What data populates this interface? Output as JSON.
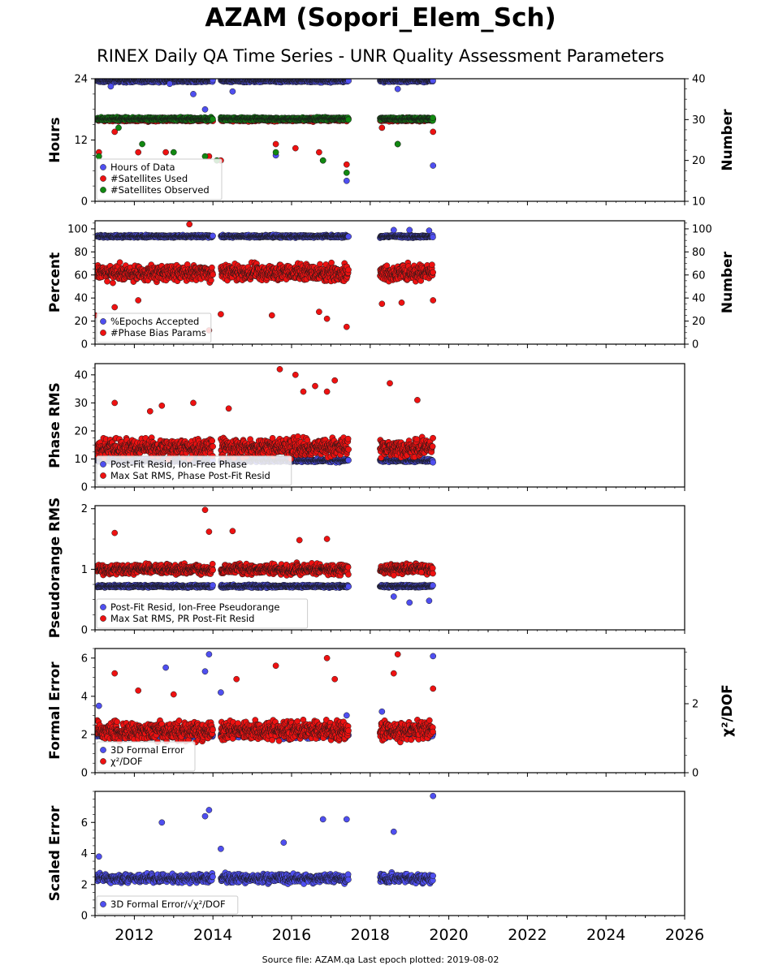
{
  "page": {
    "title": "AZAM (Sopori_Elem_Sch)",
    "subtitle": "RINEX Daily QA Time Series - UNR Quality Assessment Parameters",
    "footer": "Source file: AZAM.qa Last epoch plotted: 2019-08-02"
  },
  "colors": {
    "blue": "#4f4ff0",
    "red": "#ee1111",
    "green": "#118811"
  },
  "chart_data": [
    {
      "type": "scatter",
      "ylabel": "Hours",
      "y2label": "Number",
      "ylim": [
        0,
        24
      ],
      "yticks": [
        0,
        12,
        24
      ],
      "y2lim": [
        10,
        40
      ],
      "y2ticks": [
        10,
        20,
        30,
        40
      ],
      "xlim": [
        2011.0,
        2026.0
      ],
      "xticks": [
        2012,
        2014,
        2016,
        2018,
        2020,
        2022,
        2024,
        2026
      ],
      "legend": "lower-left",
      "series": [
        {
          "name": "Hours of Data",
          "color": "blue",
          "axis": "left",
          "base": 23.6,
          "spread": 0.4,
          "spikes": [
            [
              2011.4,
              22.5
            ],
            [
              2012.9,
              23.0
            ],
            [
              2013.5,
              21.0
            ],
            [
              2013.8,
              18.0
            ],
            [
              2014.5,
              21.5
            ],
            [
              2015.6,
              9.0
            ],
            [
              2016.8,
              8.0
            ],
            [
              2017.4,
              4.0
            ],
            [
              2018.7,
              22.0
            ],
            [
              2019.6,
              7.0
            ]
          ]
        },
        {
          "name": "#Satellites Used",
          "color": "red",
          "axis": "right",
          "base": 30.0,
          "spread": 0.6,
          "spikes": [
            [
              2011.1,
              22
            ],
            [
              2011.5,
              27
            ],
            [
              2012.1,
              22
            ],
            [
              2012.8,
              22
            ],
            [
              2013.9,
              21
            ],
            [
              2014.2,
              20
            ],
            [
              2015.6,
              24
            ],
            [
              2016.1,
              23
            ],
            [
              2016.7,
              22
            ],
            [
              2017.4,
              19
            ],
            [
              2018.3,
              28
            ],
            [
              2018.7,
              24
            ],
            [
              2019.6,
              27
            ]
          ]
        },
        {
          "name": "#Satellites Observed",
          "color": "green",
          "axis": "right",
          "base": 30.2,
          "spread": 0.5,
          "spikes": [
            [
              2011.1,
              21
            ],
            [
              2011.6,
              28
            ],
            [
              2012.2,
              24
            ],
            [
              2013.0,
              22
            ],
            [
              2013.8,
              21
            ],
            [
              2014.1,
              20
            ],
            [
              2015.6,
              22
            ],
            [
              2016.8,
              20
            ],
            [
              2017.4,
              17
            ],
            [
              2018.7,
              24
            ]
          ]
        }
      ]
    },
    {
      "type": "scatter",
      "ylabel": "Percent",
      "y2label": "Number",
      "ylim": [
        0,
        107
      ],
      "yticks": [
        0,
        20,
        40,
        60,
        80,
        100
      ],
      "y2lim": [
        0,
        107
      ],
      "y2ticks": [
        0,
        20,
        40,
        60,
        80,
        100
      ],
      "xlim": [
        2011.0,
        2026.0
      ],
      "xticks": [
        2012,
        2014,
        2016,
        2018,
        2020,
        2022,
        2024,
        2026
      ],
      "legend": "lower-left",
      "series": [
        {
          "name": "%Epochs Accepted",
          "color": "blue",
          "axis": "left",
          "base": 93.5,
          "spread": 1.5,
          "spikes": [
            [
              2018.6,
              99.0
            ],
            [
              2019.0,
              99.0
            ],
            [
              2019.5,
              98.5
            ]
          ]
        },
        {
          "name": "#Phase Bias Params",
          "color": "red",
          "axis": "right",
          "base": 62.0,
          "spread": 10.0,
          "spikes": [
            [
              2011.0,
              25
            ],
            [
              2011.5,
              32
            ],
            [
              2012.1,
              38
            ],
            [
              2013.4,
              104
            ],
            [
              2013.9,
              12
            ],
            [
              2014.2,
              26
            ],
            [
              2015.5,
              25
            ],
            [
              2016.7,
              28
            ],
            [
              2016.9,
              22
            ],
            [
              2017.4,
              15
            ],
            [
              2018.3,
              35
            ],
            [
              2018.8,
              36
            ],
            [
              2019.6,
              38
            ]
          ]
        }
      ]
    },
    {
      "type": "scatter",
      "ylabel": "Phase RMS",
      "ylim": [
        0,
        44
      ],
      "yticks": [
        0,
        10,
        20,
        30,
        40
      ],
      "xlim": [
        2011.0,
        2026.0
      ],
      "xticks": [
        2012,
        2014,
        2016,
        2018,
        2020,
        2022,
        2024,
        2026
      ],
      "legend": "lower-left",
      "series": [
        {
          "name": "Post-Fit Resid, Ion-Free Phase",
          "color": "blue",
          "base": 9.5,
          "spread": 0.8,
          "spikes": []
        },
        {
          "name": "Max Sat RMS, Phase Post-Fit Resid",
          "color": "red",
          "base": 14.0,
          "spread": 4.5,
          "spikes": [
            [
              2011.5,
              30
            ],
            [
              2012.4,
              27
            ],
            [
              2012.7,
              29
            ],
            [
              2013.5,
              30
            ],
            [
              2014.4,
              28
            ],
            [
              2015.7,
              42
            ],
            [
              2016.1,
              40
            ],
            [
              2016.3,
              34
            ],
            [
              2016.6,
              36
            ],
            [
              2016.9,
              34
            ],
            [
              2017.1,
              38
            ],
            [
              2018.5,
              37
            ],
            [
              2019.2,
              31
            ]
          ]
        }
      ]
    },
    {
      "type": "scatter",
      "ylabel": "Pseudorange RMS",
      "ylim": [
        0,
        2.05
      ],
      "yticks": [
        0,
        1,
        2
      ],
      "xlim": [
        2011.0,
        2026.0
      ],
      "xticks": [
        2012,
        2014,
        2016,
        2018,
        2020,
        2022,
        2024,
        2026
      ],
      "legend": "lower-left",
      "series": [
        {
          "name": "Post-Fit Resid, Ion-Free Pseudorange",
          "color": "blue",
          "base": 0.72,
          "spread": 0.03,
          "spikes": [
            [
              2018.6,
              0.55
            ],
            [
              2019.0,
              0.45
            ],
            [
              2019.5,
              0.48
            ]
          ]
        },
        {
          "name": "Max Sat RMS, PR Post-Fit Resid",
          "color": "red",
          "base": 1.0,
          "spread": 0.12,
          "spikes": [
            [
              2011.5,
              1.6
            ],
            [
              2013.8,
              1.98
            ],
            [
              2013.9,
              1.62
            ],
            [
              2014.5,
              1.63
            ],
            [
              2016.2,
              1.48
            ],
            [
              2016.9,
              1.5
            ],
            [
              2018.6,
              0.9
            ],
            [
              2019.3,
              0.95
            ]
          ]
        }
      ]
    },
    {
      "type": "scatter",
      "ylabel": "Formal Error",
      "y2label": "χ²/DOF",
      "ylim": [
        0,
        6.5
      ],
      "yticks": [
        0,
        2,
        4,
        6
      ],
      "y2lim": [
        0,
        3.6
      ],
      "y2ticks": [
        0,
        2
      ],
      "xlim": [
        2011.0,
        2026.0
      ],
      "xticks": [
        2012,
        2014,
        2016,
        2018,
        2020,
        2022,
        2024,
        2026
      ],
      "legend": "lower-left",
      "series": [
        {
          "name": "3D Formal Error",
          "color": "blue",
          "base": 2.0,
          "spread": 0.25,
          "spikes": [
            [
              2011.1,
              3.5
            ],
            [
              2012.8,
              5.5
            ],
            [
              2013.9,
              6.2
            ],
            [
              2013.8,
              5.3
            ],
            [
              2014.2,
              4.2
            ],
            [
              2017.4,
              3.0
            ],
            [
              2018.3,
              3.2
            ],
            [
              2019.6,
              6.1
            ]
          ]
        },
        {
          "name": "χ²/DOF",
          "color": "red",
          "base": 2.2,
          "spread": 0.7,
          "spikes": [
            [
              2011.5,
              5.2
            ],
            [
              2012.1,
              4.3
            ],
            [
              2013.0,
              4.1
            ],
            [
              2014.6,
              4.9
            ],
            [
              2015.6,
              5.6
            ],
            [
              2016.9,
              6.0
            ],
            [
              2017.1,
              4.9
            ],
            [
              2018.7,
              6.2
            ],
            [
              2018.6,
              5.2
            ],
            [
              2019.6,
              4.4
            ]
          ]
        }
      ]
    },
    {
      "type": "scatter",
      "ylabel": "Scaled Error",
      "ylim": [
        0,
        8.0
      ],
      "yticks": [
        0,
        2,
        4,
        6
      ],
      "xlim": [
        2011.0,
        2026.0
      ],
      "xticks": [
        2012,
        2014,
        2016,
        2018,
        2020,
        2022,
        2024,
        2026
      ],
      "legend": "lower-left",
      "series": [
        {
          "name": "3D Formal Error/√χ²/DOF",
          "color": "blue",
          "base": 2.4,
          "spread": 0.4,
          "spikes": [
            [
              2011.1,
              3.8
            ],
            [
              2012.7,
              6.0
            ],
            [
              2013.8,
              6.4
            ],
            [
              2013.9,
              6.8
            ],
            [
              2014.2,
              4.3
            ],
            [
              2015.8,
              4.7
            ],
            [
              2016.8,
              6.2
            ],
            [
              2017.4,
              6.2
            ],
            [
              2018.6,
              5.4
            ],
            [
              2019.6,
              7.7
            ]
          ]
        }
      ]
    }
  ],
  "segments": [
    [
      2011.05,
      2013.7
    ],
    [
      2013.7,
      2014.0
    ],
    [
      2014.2,
      2017.45
    ],
    [
      2018.25,
      2019.6
    ]
  ]
}
